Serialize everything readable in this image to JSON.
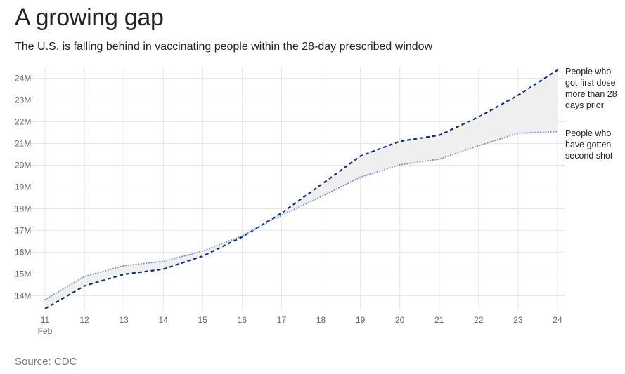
{
  "header": {
    "title": "A growing gap",
    "subtitle": "The U.S. is falling behind in vaccinating people within the 28-day prescribed window"
  },
  "footer": {
    "source_label": "Source:",
    "source_link": "CDC"
  },
  "colors": {
    "first_dose_line": "#0d2f6b",
    "second_shot_line": "#6f8ee0",
    "gap_fill": "#efefef",
    "grid": "#e6e6e6"
  },
  "chart_data": {
    "type": "line",
    "title": "A growing gap",
    "subtitle": "The U.S. is falling behind in vaccinating people within the 28-day prescribed window",
    "x": [
      11,
      12,
      13,
      14,
      15,
      16,
      17,
      18,
      19,
      20,
      21,
      22,
      23,
      24
    ],
    "x_tick_labels": [
      "11",
      "12",
      "13",
      "14",
      "15",
      "16",
      "17",
      "18",
      "19",
      "20",
      "21",
      "22",
      "23",
      "24"
    ],
    "x_tick_sublabel": "Feb",
    "y_ticks": [
      14,
      15,
      16,
      17,
      18,
      19,
      20,
      21,
      22,
      23,
      24
    ],
    "y_tick_labels": [
      "14M",
      "15M",
      "16M",
      "17M",
      "18M",
      "19M",
      "20M",
      "21M",
      "22M",
      "23M",
      "24M"
    ],
    "xlim": [
      11,
      24
    ],
    "ylim": [
      13.4,
      24.5
    ],
    "grid": true,
    "legend": "direct labels at right end of lines",
    "series": [
      {
        "name": "People who got first dose more than 28 days prior",
        "label_lines": [
          "People who",
          "got first dose",
          "more than 28",
          "days prior"
        ],
        "style": "dashed",
        "values": [
          13.4,
          14.45,
          14.98,
          15.22,
          15.82,
          16.7,
          17.8,
          19.1,
          20.42,
          21.1,
          21.38,
          22.22,
          23.22,
          24.38
        ]
      },
      {
        "name": "People who have gotten second shot",
        "label_lines": [
          "People who",
          "have gotten",
          "second shot"
        ],
        "style": "dotted",
        "values": [
          13.82,
          14.88,
          15.38,
          15.58,
          16.05,
          16.75,
          17.7,
          18.55,
          19.45,
          20.02,
          20.28,
          20.9,
          21.47,
          21.55
        ]
      }
    ]
  }
}
